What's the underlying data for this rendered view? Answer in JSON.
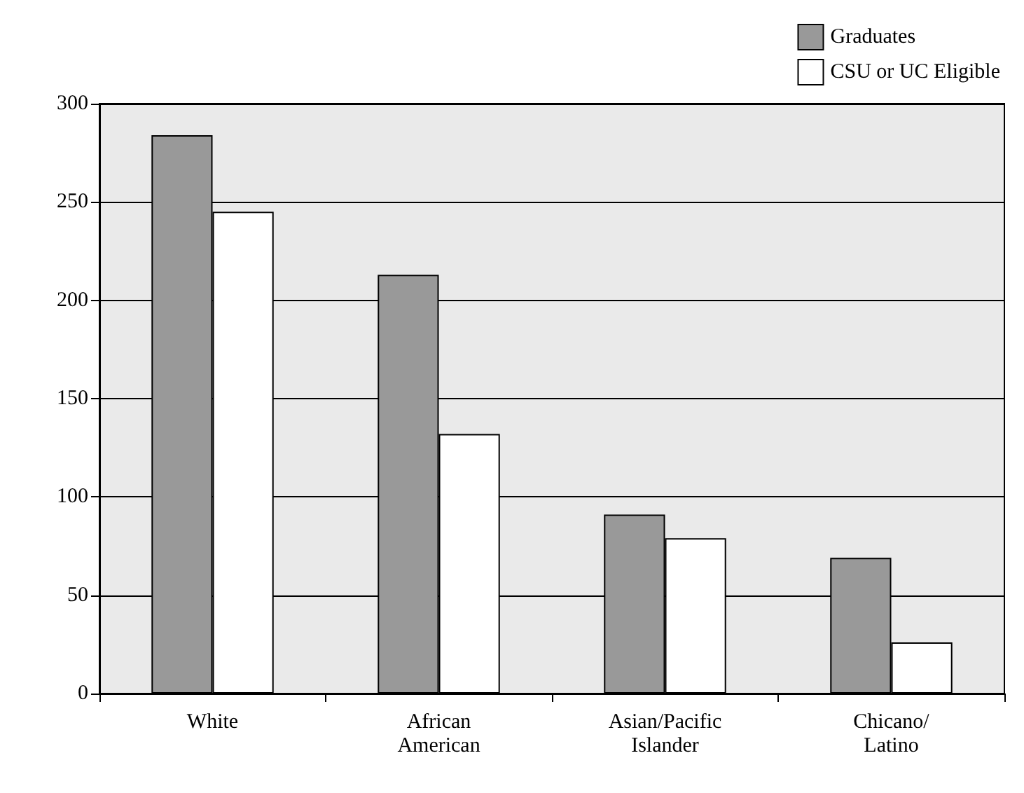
{
  "chart_data": {
    "type": "bar",
    "categories": [
      "White",
      "African\nAmerican",
      "Asian/Pacific\nIslander",
      "Chicano/\nLatino"
    ],
    "series": [
      {
        "name": "Graduates",
        "color": "#999999",
        "values": [
          284,
          213,
          91,
          69
        ]
      },
      {
        "name": "CSU or UC Eligible",
        "color": "#ffffff",
        "values": [
          245,
          132,
          79,
          26
        ]
      }
    ],
    "ylim": [
      0,
      300
    ],
    "yticks": [
      0,
      50,
      100,
      150,
      200,
      250,
      300
    ],
    "grid": "y",
    "legend": "top right"
  }
}
